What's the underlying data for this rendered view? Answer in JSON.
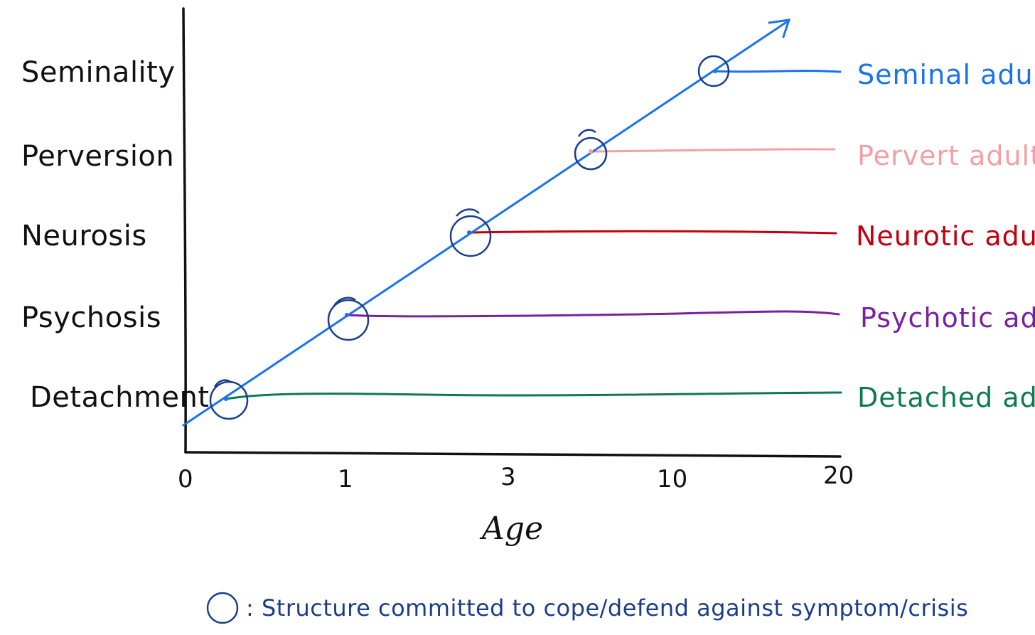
{
  "levels": [
    {
      "label": "Seminality"
    },
    {
      "label": "Perversion"
    },
    {
      "label": "Neurosis"
    },
    {
      "label": "Psychosis"
    },
    {
      "label": "Detachment"
    }
  ],
  "x_axis": {
    "title": "Age",
    "ticks": [
      "0",
      "1",
      "3",
      "10",
      "20"
    ]
  },
  "outcomes": [
    {
      "label": "Seminal adult",
      "color": "#1a73e8"
    },
    {
      "label": "Pervert adult",
      "color": "#f4a0a0"
    },
    {
      "label": "Neurotic adult",
      "color": "#c00010"
    },
    {
      "label": "Psychotic adult",
      "color": "#7b1fa2"
    },
    {
      "label": "Detached adult",
      "color": "#0b7a50"
    }
  ],
  "legend": {
    "text": ": Structure committed to cope/defend against symptom/crisis"
  },
  "colors": {
    "growth_line": "#1a73e8",
    "commit_circle": "#1a3e8c",
    "axis": "#111111"
  }
}
